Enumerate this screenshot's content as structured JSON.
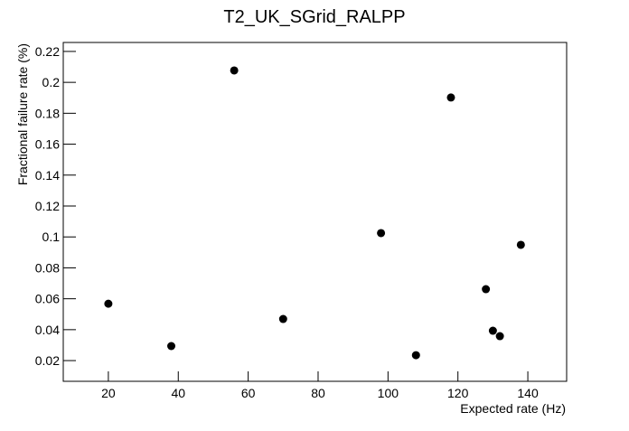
{
  "chart_data": {
    "type": "scatter",
    "title": "T2_UK_SGrid_RALPP",
    "x_label": "Expected rate (Hz)",
    "y_label": "Fractional failure rate (%)",
    "series": [
      {
        "color": "#000000",
        "x": [
          20,
          38,
          56,
          70,
          98,
          108,
          118,
          128,
          130,
          132,
          138
        ],
        "values": [
          0.0568,
          0.0294,
          0.2077,
          0.0469,
          0.1025,
          0.0235,
          0.1902,
          0.0662,
          0.0393,
          0.0358,
          0.0949
        ]
      }
    ],
    "xlim": [
      7.1,
      151.1
    ],
    "ylim": [
      0.0066,
      0.2258
    ],
    "xticks": [
      20,
      40,
      60,
      80,
      100,
      120,
      140
    ],
    "yticks": [
      0.02,
      0.04,
      0.06,
      0.08,
      0.1,
      0.12,
      0.14,
      0.16,
      0.18,
      0.2,
      0.22
    ]
  }
}
